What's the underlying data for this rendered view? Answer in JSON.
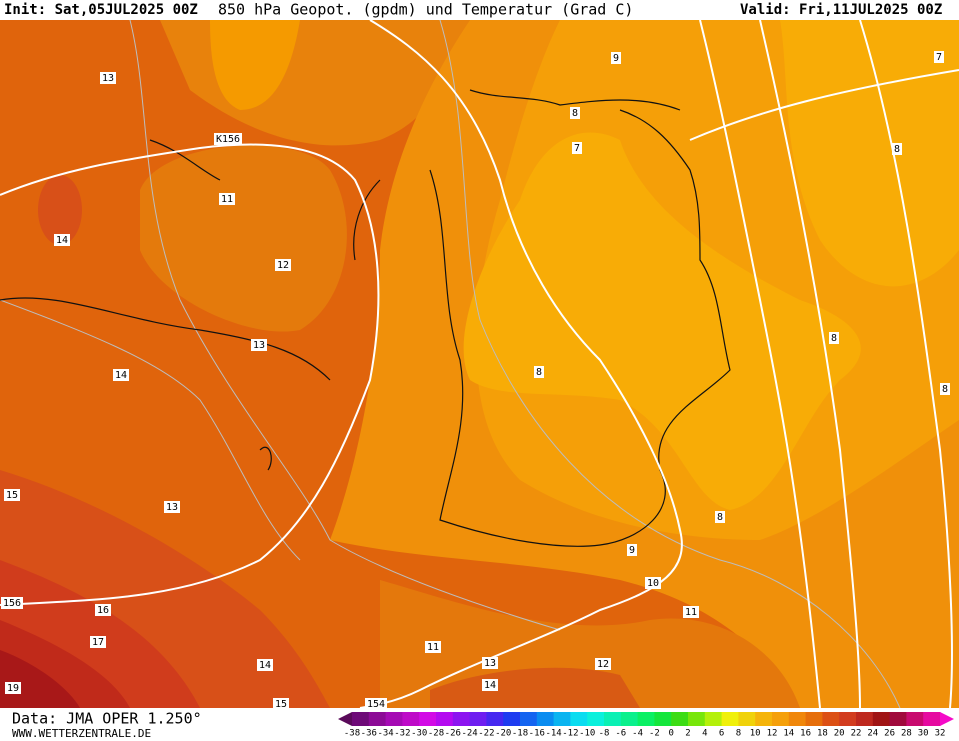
{
  "header": {
    "init": "Init: Sat,05JUL2025 00Z",
    "title": "850 hPa Geopot. (gpdm) und Temperatur (Grad C)",
    "valid": "Valid: Fri,11JUL2025 00Z"
  },
  "footer": {
    "source": "Data: JMA OPER 1.250°",
    "site": "WWW.WETTERZENTRALE.DE"
  },
  "map_labels": [
    13,
    11,
    12,
    13,
    14,
    14,
    13,
    15,
    156,
    16,
    17,
    14,
    19,
    15,
    154,
    "K156",
    9,
    8,
    7,
    7,
    8,
    8,
    8,
    8,
    8,
    9,
    10,
    11,
    11,
    12,
    13,
    14
  ],
  "colorbar": {
    "labels": [
      -38,
      -36,
      -34,
      -32,
      -30,
      -28,
      -26,
      -24,
      -22,
      -20,
      -18,
      -16,
      -14,
      -12,
      -10,
      -8,
      -6,
      -4,
      -2,
      0,
      2,
      4,
      6,
      8,
      10,
      12,
      14,
      16,
      18,
      20,
      22,
      24,
      26,
      28,
      30,
      32
    ],
    "colors": [
      "#5a0a5a",
      "#6e0a78",
      "#8c0a96",
      "#a50ab4",
      "#be0ac8",
      "#d20ae6",
      "#b40af0",
      "#8c14f0",
      "#6e1ef0",
      "#4628f0",
      "#1e3cf0",
      "#1464f0",
      "#0a8cf0",
      "#0ab4f0",
      "#0adcf0",
      "#0af0dc",
      "#0af0b4",
      "#0af08c",
      "#0af064",
      "#14e63c",
      "#3cdc14",
      "#78e60a",
      "#b4f00a",
      "#f0f00a",
      "#f0d20a",
      "#f5b40a",
      "#f5a00a",
      "#f0870a",
      "#e66e0a",
      "#dc5014",
      "#d23c1e",
      "#be281e",
      "#a01414",
      "#a00a3c",
      "#c80a6e",
      "#e60aa0",
      "#f50ac8"
    ]
  }
}
